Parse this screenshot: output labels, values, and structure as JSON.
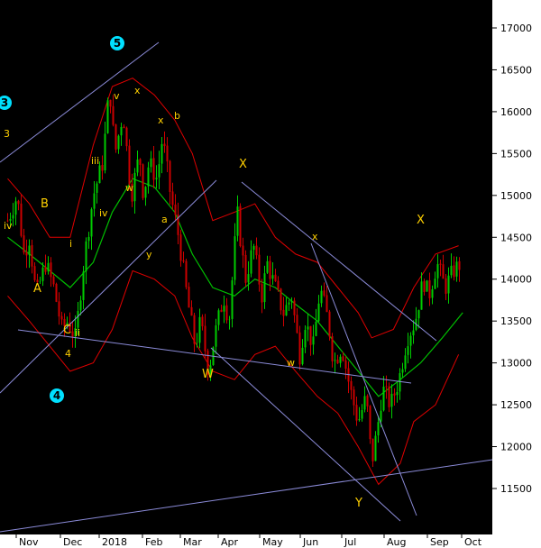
{
  "chart_data": {
    "type": "candlestick",
    "colors": {
      "background": "#000000",
      "axis_panel": "#ffffff",
      "bull_candle": "#00cc00",
      "bear_candle": "#cc0000",
      "bollinger": "#e00000",
      "moving_average": "#00c000",
      "trendlines": "#8b8bd8",
      "wave_labels": "#ffd000",
      "circle_labels": "#00e0ff"
    },
    "y_axis": {
      "ticks": [
        "11500",
        "12000",
        "12500",
        "13000",
        "13500",
        "14000",
        "14500",
        "15000",
        "15500",
        "16000",
        "16500",
        "17000"
      ],
      "range": [
        11000,
        17300
      ]
    },
    "x_axis": {
      "months": [
        "Nov",
        "Dec",
        "2018",
        "Feb",
        "Mar",
        "Apr",
        "May",
        "Jun",
        "Jul",
        "Aug",
        "Sep",
        "Oct"
      ]
    },
    "price_path": [
      [
        "2017-10-25",
        14700
      ],
      [
        "2017-11-01",
        15000
      ],
      [
        "2017-11-06",
        14300
      ],
      [
        "2017-11-10",
        14500
      ],
      [
        "2017-11-15",
        13800
      ],
      [
        "2017-11-22",
        14200
      ],
      [
        "2017-11-28",
        13900
      ],
      [
        "2017-12-04",
        13400
      ],
      [
        "2017-12-08",
        13500
      ],
      [
        "2017-12-14",
        13300
      ],
      [
        "2017-12-20",
        14200
      ],
      [
        "2017-12-27",
        15000
      ],
      [
        "2018-01-03",
        15400
      ],
      [
        "2018-01-08",
        16300
      ],
      [
        "2018-01-12",
        15500
      ],
      [
        "2018-01-18",
        16000
      ],
      [
        "2018-01-24",
        15000
      ],
      [
        "2018-01-30",
        15500
      ],
      [
        "2018-02-02",
        15000
      ],
      [
        "2018-02-06",
        15400
      ],
      [
        "2018-02-12",
        15200
      ],
      [
        "2018-02-16",
        15700
      ],
      [
        "2018-02-22",
        15000
      ],
      [
        "2018-02-28",
        14500
      ],
      [
        "2018-03-06",
        13800
      ],
      [
        "2018-03-12",
        13200
      ],
      [
        "2018-03-16",
        13500
      ],
      [
        "2018-03-22",
        12900
      ],
      [
        "2018-03-26",
        13300
      ],
      [
        "2018-04-02",
        13800
      ],
      [
        "2018-04-06",
        13500
      ],
      [
        "2018-04-12",
        14800
      ],
      [
        "2018-04-18",
        14000
      ],
      [
        "2018-04-24",
        14400
      ],
      [
        "2018-04-30",
        13800
      ],
      [
        "2018-05-04",
        14200
      ],
      [
        "2018-05-10",
        13900
      ],
      [
        "2018-05-16",
        13600
      ],
      [
        "2018-05-22",
        13800
      ],
      [
        "2018-05-28",
        13100
      ],
      [
        "2018-06-01",
        13500
      ],
      [
        "2018-06-07",
        13200
      ],
      [
        "2018-06-12",
        13900
      ],
      [
        "2018-06-18",
        13500
      ],
      [
        "2018-06-22",
        13000
      ],
      [
        "2018-06-28",
        13200
      ],
      [
        "2018-07-04",
        12700
      ],
      [
        "2018-07-10",
        12300
      ],
      [
        "2018-07-16",
        12600
      ],
      [
        "2018-07-20",
        11800
      ],
      [
        "2018-07-24",
        12200
      ],
      [
        "2018-07-28",
        12700
      ],
      [
        "2018-08-03",
        12500
      ],
      [
        "2018-08-09",
        12800
      ],
      [
        "2018-08-15",
        13300
      ],
      [
        "2018-08-21",
        13500
      ],
      [
        "2018-08-27",
        14000
      ],
      [
        "2018-08-31",
        13800
      ],
      [
        "2018-09-06",
        14200
      ],
      [
        "2018-09-12",
        13900
      ],
      [
        "2018-09-18",
        14100
      ],
      [
        "2018-09-24",
        14200
      ]
    ],
    "bollinger_upper": [
      [
        "2017-10-25",
        15200
      ],
      [
        "2017-11-10",
        14900
      ],
      [
        "2017-11-25",
        14500
      ],
      [
        "2017-12-10",
        14500
      ],
      [
        "2017-12-27",
        15600
      ],
      [
        "2018-01-10",
        16300
      ],
      [
        "2018-01-25",
        16400
      ],
      [
        "2018-02-10",
        16200
      ],
      [
        "2018-02-25",
        15900
      ],
      [
        "2018-03-10",
        15500
      ],
      [
        "2018-03-25",
        14700
      ],
      [
        "2018-04-10",
        14800
      ],
      [
        "2018-04-25",
        14900
      ],
      [
        "2018-05-10",
        14500
      ],
      [
        "2018-05-25",
        14300
      ],
      [
        "2018-06-10",
        14200
      ],
      [
        "2018-06-25",
        13900
      ],
      [
        "2018-07-10",
        13600
      ],
      [
        "2018-07-20",
        13300
      ],
      [
        "2018-08-05",
        13400
      ],
      [
        "2018-08-20",
        13900
      ],
      [
        "2018-09-05",
        14300
      ],
      [
        "2018-09-22",
        14400
      ]
    ],
    "bollinger_lower": [
      [
        "2017-10-25",
        13800
      ],
      [
        "2017-11-10",
        13500
      ],
      [
        "2017-11-25",
        13200
      ],
      [
        "2017-12-10",
        12900
      ],
      [
        "2017-12-27",
        13000
      ],
      [
        "2018-01-10",
        13400
      ],
      [
        "2018-01-25",
        14100
      ],
      [
        "2018-02-10",
        14000
      ],
      [
        "2018-02-25",
        13800
      ],
      [
        "2018-03-10",
        13300
      ],
      [
        "2018-03-25",
        12900
      ],
      [
        "2018-04-10",
        12800
      ],
      [
        "2018-04-25",
        13100
      ],
      [
        "2018-05-10",
        13200
      ],
      [
        "2018-05-25",
        12900
      ],
      [
        "2018-06-10",
        12600
      ],
      [
        "2018-06-25",
        12400
      ],
      [
        "2018-07-10",
        12000
      ],
      [
        "2018-07-25",
        11550
      ],
      [
        "2018-08-10",
        11800
      ],
      [
        "2018-08-20",
        12300
      ],
      [
        "2018-09-05",
        12500
      ],
      [
        "2018-09-22",
        13100
      ]
    ],
    "moving_average": [
      [
        "2017-10-25",
        14500
      ],
      [
        "2017-11-10",
        14300
      ],
      [
        "2017-11-25",
        14100
      ],
      [
        "2017-12-10",
        13900
      ],
      [
        "2017-12-27",
        14200
      ],
      [
        "2018-01-10",
        14800
      ],
      [
        "2018-01-25",
        15200
      ],
      [
        "2018-02-10",
        15100
      ],
      [
        "2018-02-25",
        14800
      ],
      [
        "2018-03-10",
        14300
      ],
      [
        "2018-03-25",
        13900
      ],
      [
        "2018-04-10",
        13800
      ],
      [
        "2018-04-25",
        14000
      ],
      [
        "2018-05-10",
        13900
      ],
      [
        "2018-05-25",
        13700
      ],
      [
        "2018-06-10",
        13500
      ],
      [
        "2018-06-25",
        13200
      ],
      [
        "2018-07-10",
        12900
      ],
      [
        "2018-07-25",
        12600
      ],
      [
        "2018-08-10",
        12800
      ],
      [
        "2018-08-25",
        13000
      ],
      [
        "2018-09-10",
        13300
      ],
      [
        "2018-09-25",
        13600
      ]
    ],
    "wave_labels": [
      "5",
      "3",
      "3",
      "4",
      "4",
      "B",
      "A",
      "C",
      "ii",
      "i",
      "iv",
      "iii",
      "iv",
      "v",
      "x",
      "x",
      "b",
      "w",
      "y",
      "a",
      "X",
      "W",
      "x",
      "w",
      "X",
      "Y"
    ]
  }
}
